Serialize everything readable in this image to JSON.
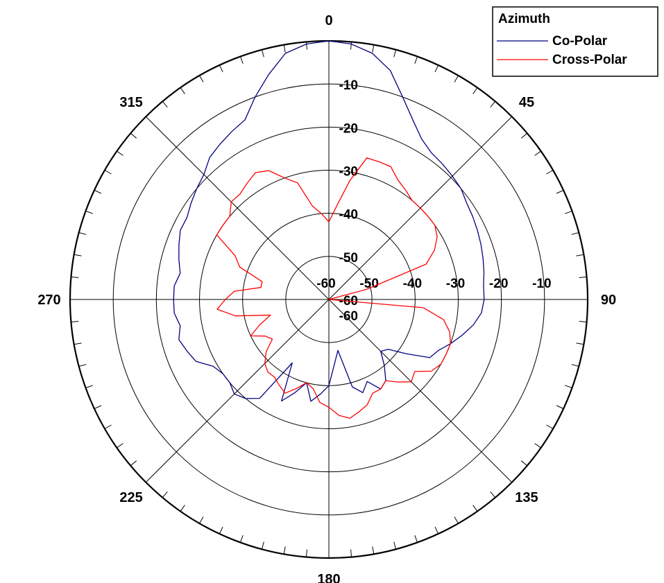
{
  "chart_data": {
    "type": "line",
    "subtype": "polar",
    "title": "",
    "legend": {
      "title": "Azimuth",
      "placement": "top-right",
      "entries": [
        {
          "name": "Co-Polar",
          "color": "#000080"
        },
        {
          "name": "Cross-Polar",
          "color": "#ff0000"
        }
      ]
    },
    "angle_axis": {
      "direction": "clockwise",
      "zero_at": "top",
      "labels": [
        "0",
        "45",
        "90",
        "135",
        "180",
        "225",
        "270",
        "315"
      ],
      "label_angles": [
        0,
        45,
        90,
        135,
        180,
        225,
        270,
        315
      ],
      "minor_tick_step": 5
    },
    "radial_axis": {
      "rlim": [
        -60,
        0
      ],
      "ring_values": [
        -60,
        -50,
        -40,
        -30,
        -20,
        -10,
        0
      ],
      "vertical_labels": [
        "-10",
        "-20",
        "-30",
        "-40",
        "-50",
        "-60",
        "-60"
      ],
      "vertical_label_values": [
        -10,
        -20,
        -30,
        -40,
        -50,
        -60,
        -60
      ],
      "horizontal_labels": [
        "-60",
        "-50",
        "-40",
        "-30",
        "-20",
        "-10"
      ],
      "horizontal_label_values": [
        -60,
        -50,
        -40,
        -30,
        -20,
        -10
      ],
      "grid": true
    },
    "series": [
      {
        "name": "Co-Polar",
        "color": "#000080",
        "angles": [
          0,
          5,
          10,
          15,
          20,
          25,
          30,
          35,
          40,
          45,
          50,
          55,
          60,
          65,
          70,
          75,
          80,
          85,
          90,
          95,
          100,
          105,
          110,
          115,
          120,
          125,
          130,
          135,
          140,
          145,
          150,
          155,
          160,
          165,
          170,
          175,
          180,
          185,
          190,
          195,
          200,
          205,
          210,
          215,
          220,
          225,
          230,
          235,
          240,
          245,
          250,
          255,
          260,
          265,
          270,
          275,
          280,
          285,
          290,
          295,
          300,
          305,
          310,
          315,
          320,
          325,
          330,
          335,
          340,
          345,
          350,
          355,
          360
        ],
        "values": [
          0,
          -0.5,
          -2,
          -5,
          -10,
          -14,
          -17,
          -18.5,
          -19,
          -19.5,
          -20,
          -21,
          -21.5,
          -22,
          -22.5,
          -23,
          -23.5,
          -24,
          -24,
          -24.5,
          -26,
          -28,
          -30,
          -32,
          -33,
          -38,
          -42,
          -43,
          -40,
          -37,
          -36,
          -39,
          -37,
          -39,
          -48,
          -45,
          -40,
          -38,
          -36,
          -40,
          -37,
          -34,
          -43,
          -32,
          -30,
          -29,
          -30,
          -30,
          -29,
          -26,
          -25,
          -24,
          -25,
          -24,
          -24,
          -24,
          -25,
          -24,
          -23,
          -22,
          -22,
          -21,
          -20,
          -19,
          -17,
          -16,
          -15,
          -14,
          -10,
          -6,
          -2,
          -0.5,
          0
        ]
      },
      {
        "name": "Cross-Polar",
        "color": "#ff0000",
        "angles": [
          0,
          5,
          10,
          15,
          20,
          25,
          30,
          35,
          40,
          45,
          50,
          55,
          60,
          65,
          70,
          75,
          80,
          85,
          90,
          95,
          100,
          105,
          110,
          115,
          120,
          125,
          130,
          135,
          140,
          145,
          150,
          155,
          160,
          165,
          170,
          175,
          180,
          185,
          190,
          195,
          200,
          205,
          210,
          215,
          220,
          225,
          230,
          235,
          240,
          245,
          250,
          255,
          260,
          265,
          270,
          275,
          280,
          285,
          290,
          295,
          300,
          305,
          310,
          315,
          320,
          325,
          330,
          335,
          340,
          345,
          350,
          355,
          360
        ],
        "values": [
          -42,
          -38,
          -32,
          -26,
          -26,
          -26,
          -28,
          -29,
          -30,
          -30,
          -30,
          -30,
          -31,
          -33,
          -36,
          -51,
          -60,
          -60,
          -60,
          -38,
          -33,
          -31,
          -30,
          -30,
          -30,
          -31,
          -34,
          -33,
          -35,
          -37,
          -36,
          -36,
          -34,
          -33,
          -32,
          -33,
          -35,
          -36,
          -39,
          -40,
          -38,
          -36,
          -37,
          -38,
          -38,
          -39,
          -41,
          -44,
          -43,
          -40,
          -43,
          -46,
          -38,
          -34,
          -36,
          -38,
          -44,
          -44,
          -38,
          -36,
          -30,
          -30,
          -30,
          -28,
          -28,
          -27,
          -26,
          -27,
          -30,
          -32,
          -38,
          -40,
          -42
        ]
      }
    ]
  }
}
